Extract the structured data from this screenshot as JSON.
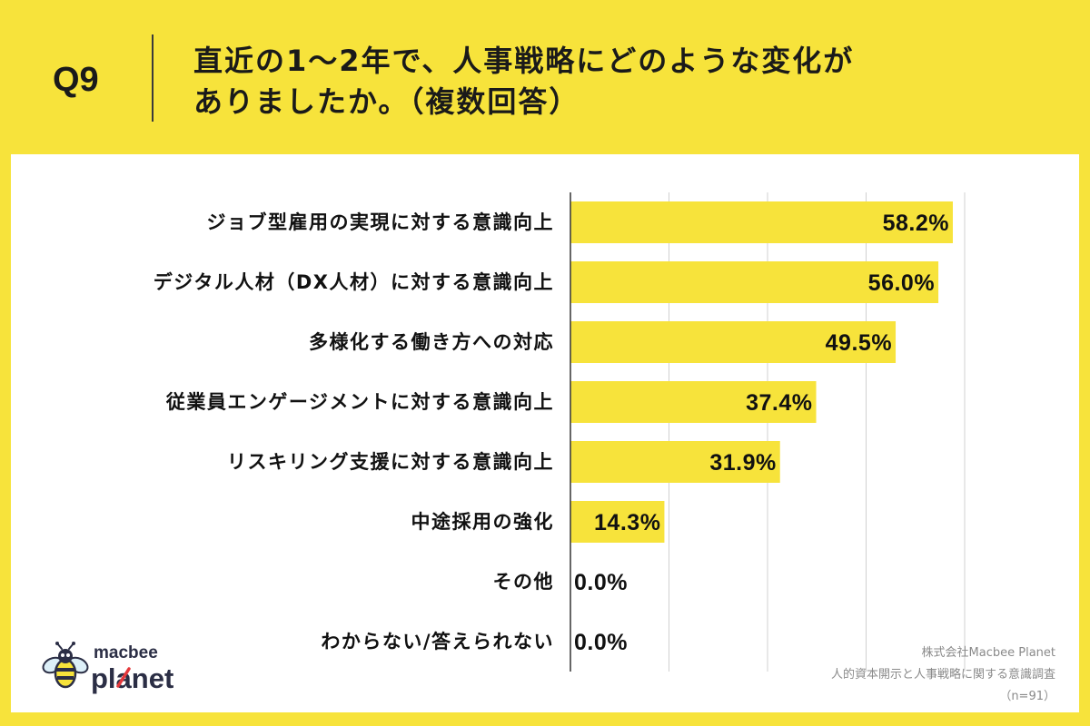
{
  "header": {
    "question_number": "Q9",
    "title_lines": [
      "直近の1〜2年で、人事戦略にどのような変化が",
      "ありましたか。（複数回答）"
    ]
  },
  "chart_data": {
    "type": "bar",
    "orientation": "horizontal",
    "categories": [
      "ジョブ型雇用の実現に対する意識向上",
      "デジタル人材（DX人材）に対する意識向上",
      "多様化する働き方への対応",
      "従業員エンゲージメントに対する意識向上",
      "リスキリング支援に対する意識向上",
      "中途採用の強化",
      "その他",
      "わからない/答えられない"
    ],
    "values": [
      58.2,
      56.0,
      49.5,
      37.4,
      31.9,
      14.3,
      0.0,
      0.0
    ],
    "value_labels": [
      "58.2%",
      "56.0%",
      "49.5%",
      "37.4%",
      "31.9%",
      "14.3%",
      "0.0%",
      "0.0%"
    ],
    "xlim": [
      0,
      60
    ],
    "grid": true,
    "grid_step": 15,
    "data_labels": true,
    "bar_color": "#F7E33B"
  },
  "logo": {
    "line1": "macbee",
    "line2": "planet"
  },
  "footer": {
    "company": "株式会社Macbee Planet",
    "survey": "人的資本開示と人事戦略に関する意識調査",
    "sample": "（n=91）"
  },
  "colors": {
    "background": "#F7E33B",
    "card": "#FFFFFF",
    "text": "#111111",
    "footer_text": "#8A8A8A",
    "gridline": "#D0D0D0",
    "axis": "#333333",
    "logo_navy": "#2B2E45",
    "logo_accent": "#E5383B"
  },
  "icons": {
    "logo_mark": "bee-icon"
  }
}
